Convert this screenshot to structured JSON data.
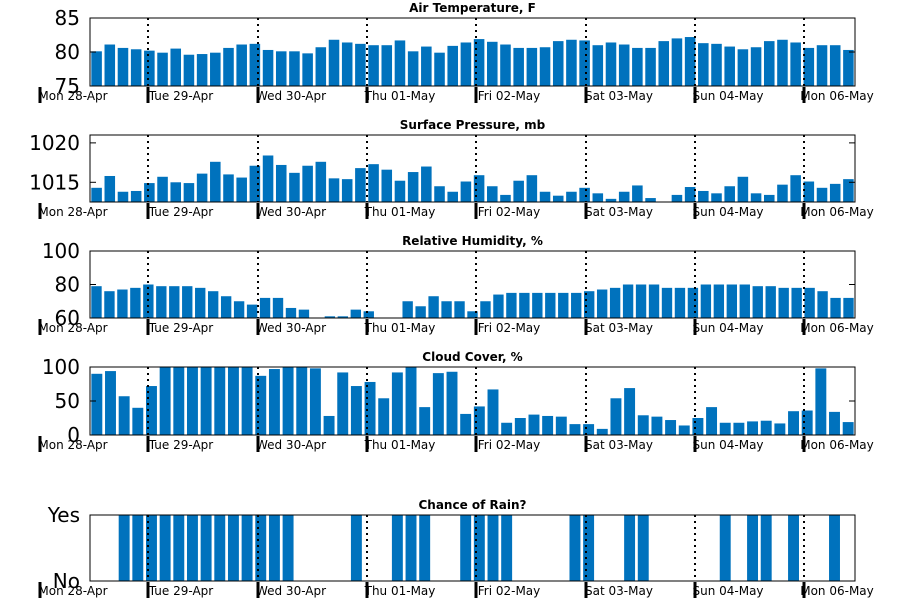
{
  "colors": {
    "bar": "#0072bd",
    "axis": "#000000",
    "background": "#ffffff"
  },
  "x_labels": [
    "Mon 28-Apr",
    "Tue 29-Apr",
    "Wed 30-Apr",
    "Thu 01-May",
    "Fri 02-May",
    "Sat 03-May",
    "Sun 04-May",
    "Mon 06-May"
  ],
  "chart_data": [
    {
      "type": "bar",
      "title": "Air Temperature, F",
      "xlabel": "",
      "ylabel": "",
      "ylim": [
        75,
        85
      ],
      "yticks": [
        75,
        80,
        85
      ],
      "ytick_labels": [
        "75",
        "80",
        "85"
      ],
      "values": [
        80.1,
        81.1,
        80.6,
        80.4,
        80.2,
        79.9,
        80.5,
        79.6,
        79.7,
        79.9,
        80.6,
        81.1,
        81.2,
        80.3,
        80.1,
        80.1,
        79.8,
        80.7,
        81.8,
        81.4,
        81.2,
        81.0,
        81.0,
        81.7,
        80.1,
        80.8,
        79.9,
        80.9,
        81.4,
        81.9,
        81.5,
        81.1,
        80.6,
        80.6,
        80.7,
        81.6,
        81.8,
        81.7,
        81.0,
        81.4,
        81.1,
        80.6,
        80.6,
        81.6,
        82.0,
        82.2,
        81.3,
        81.2,
        80.8,
        80.4,
        80.7,
        81.6,
        81.8,
        81.4,
        80.6,
        81.0,
        81.0,
        80.3
      ],
      "grid": false
    },
    {
      "type": "bar",
      "title": "Surface Pressure, mb",
      "xlabel": "",
      "ylabel": "",
      "ylim": [
        1012.5,
        1021
      ],
      "yticks": [
        1015,
        1020
      ],
      "ytick_labels": [
        "1015",
        "1020"
      ],
      "values": [
        1014.3,
        1015.8,
        1013.8,
        1013.9,
        1014.9,
        1015.7,
        1015.0,
        1014.9,
        1016.1,
        1017.6,
        1016.0,
        1015.6,
        1017.1,
        1018.4,
        1017.2,
        1016.2,
        1017.1,
        1017.6,
        1015.5,
        1015.4,
        1016.8,
        1017.3,
        1016.6,
        1015.2,
        1016.3,
        1017.0,
        1014.5,
        1013.8,
        1015.1,
        1015.9,
        1014.5,
        1013.4,
        1015.2,
        1015.9,
        1013.8,
        1013.3,
        1013.8,
        1014.3,
        1013.6,
        1012.9,
        1013.8,
        1014.6,
        1013.0,
        1012.3,
        1013.4,
        1014.4,
        1013.9,
        1013.6,
        1014.5,
        1015.7,
        1013.6,
        1013.4,
        1014.7,
        1015.9,
        1015.1,
        1014.3,
        1014.8,
        1015.4
      ],
      "grid": false
    },
    {
      "type": "bar",
      "title": "Relative Humidity, %",
      "xlabel": "",
      "ylabel": "",
      "ylim": [
        60,
        100
      ],
      "yticks": [
        60,
        80,
        100
      ],
      "ytick_labels": [
        "60",
        "80",
        "100"
      ],
      "values": [
        79,
        76,
        77,
        78,
        80,
        79,
        79,
        79,
        78,
        76,
        73,
        70,
        68,
        72,
        72,
        66,
        65,
        60,
        61,
        61,
        65,
        64,
        59,
        60,
        70,
        67,
        73,
        70,
        70,
        64,
        70,
        74,
        75,
        75,
        75,
        75,
        75,
        75,
        76,
        77,
        78,
        80,
        80,
        80,
        78,
        78,
        78,
        80,
        80,
        80,
        80,
        79,
        79,
        78,
        78,
        78,
        76,
        72,
        72
      ],
      "grid": false
    },
    {
      "type": "bar",
      "title": "Cloud Cover, %",
      "xlabel": "",
      "ylabel": "",
      "ylim": [
        0,
        100
      ],
      "yticks": [
        0,
        50,
        100
      ],
      "ytick_labels": [
        "0",
        "50",
        "100"
      ],
      "values": [
        90,
        94,
        57,
        40,
        72,
        100,
        100,
        100,
        100,
        100,
        100,
        100,
        87,
        97,
        100,
        100,
        98,
        28,
        92,
        72,
        78,
        54,
        92,
        100,
        41,
        91,
        93,
        31,
        42,
        67,
        18,
        25,
        30,
        28,
        27,
        16,
        16,
        9,
        54,
        69,
        29,
        27,
        22,
        14,
        25,
        41,
        18,
        18,
        20,
        21,
        17,
        35,
        36,
        98,
        34,
        19
      ],
      "grid": false
    },
    {
      "type": "bar",
      "title": "Chance of Rain?",
      "xlabel": "",
      "ylabel": "",
      "ylim": [
        0,
        1
      ],
      "yticks": [
        0,
        1
      ],
      "ytick_labels": [
        "No",
        "Yes"
      ],
      "values": [
        0,
        0,
        1,
        1,
        1,
        1,
        1,
        1,
        1,
        1,
        1,
        1,
        1,
        1,
        1,
        0,
        0,
        0,
        0,
        1,
        0,
        0,
        1,
        1,
        1,
        0,
        0,
        1,
        1,
        1,
        1,
        0,
        0,
        0,
        0,
        1,
        1,
        0,
        0,
        1,
        1,
        0,
        0,
        0,
        0,
        0,
        1,
        0,
        1,
        1,
        0,
        1,
        0,
        0,
        1,
        0
      ],
      "grid": false
    }
  ]
}
